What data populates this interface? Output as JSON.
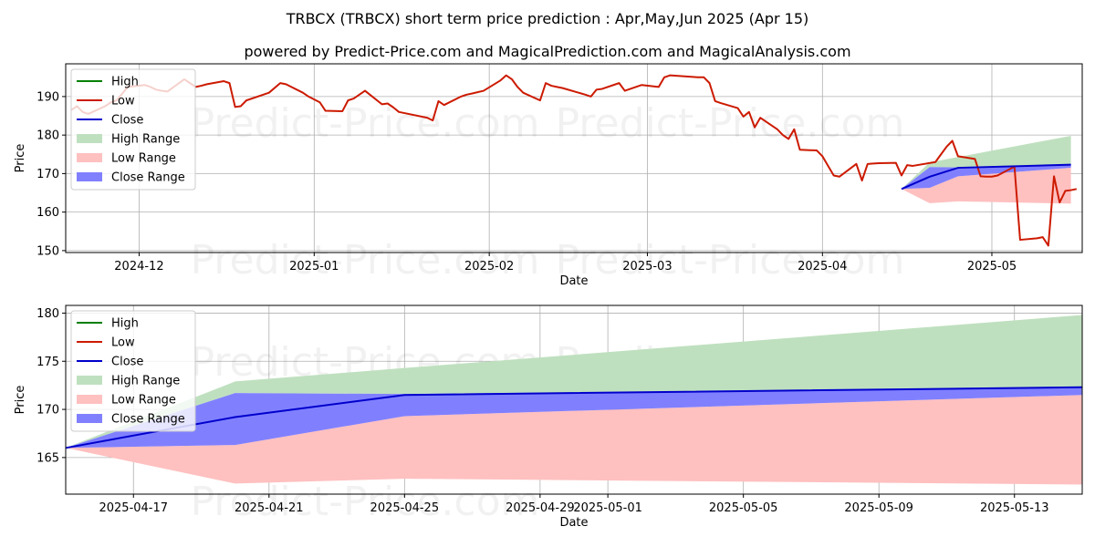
{
  "page": {
    "title": "TRBCX (TRBCX) short term price prediction : Apr,May,Jun 2025 (Apr 15)",
    "subtitle": "powered by Predict-Price.com and MagicalPrediction.com and MagicalAnalysis.com",
    "watermark": "Predict-Price.com"
  },
  "colors": {
    "high": "#008000",
    "low": "#cc1a00",
    "close": "#0000cc",
    "high_range": "#bfe0bf",
    "low_range": "#ffc0c0",
    "close_range": "#8080ff",
    "grid": "#b0b0b0"
  },
  "chart_data": [
    {
      "type": "line",
      "name": "history",
      "xlabel": "Date",
      "ylabel": "Price",
      "xlim": [
        "2024-11-18",
        "2025-05-17"
      ],
      "ylim": [
        149.5,
        198.5
      ],
      "yticks": [
        150,
        160,
        170,
        180,
        190
      ],
      "xticks": [
        {
          "date": "2024-12-01",
          "label": "2024-12"
        },
        {
          "date": "2025-01-01",
          "label": "2025-01"
        },
        {
          "date": "2025-02-01",
          "label": "2025-02"
        },
        {
          "date": "2025-03-01",
          "label": "2025-03"
        },
        {
          "date": "2025-04-01",
          "label": "2025-04"
        },
        {
          "date": "2025-05-01",
          "label": "2025-05"
        }
      ],
      "legend": [
        "High",
        "Low",
        "Close",
        "High Range",
        "Low Range",
        "Close Range"
      ],
      "legend_position": "upper-left",
      "low_series": [
        [
          "2024-11-19",
          186.5
        ],
        [
          "2024-11-20",
          187.5
        ],
        [
          "2024-11-21",
          186.0
        ],
        [
          "2024-11-22",
          185.5
        ],
        [
          "2024-11-25",
          187.5
        ],
        [
          "2024-11-26",
          188.5
        ],
        [
          "2024-11-27",
          189.0
        ],
        [
          "2024-11-29",
          192.5
        ],
        [
          "2024-12-02",
          193.0
        ],
        [
          "2024-12-03",
          192.5
        ],
        [
          "2024-12-04",
          191.8
        ],
        [
          "2024-12-05",
          191.5
        ],
        [
          "2024-12-06",
          191.3
        ],
        [
          "2024-12-09",
          194.5
        ],
        [
          "2024-12-10",
          193.5
        ],
        [
          "2024-12-11",
          192.5
        ],
        [
          "2024-12-12",
          192.8
        ],
        [
          "2024-12-13",
          193.2
        ],
        [
          "2024-12-16",
          194.0
        ],
        [
          "2024-12-17",
          193.5
        ],
        [
          "2024-12-18",
          187.3
        ],
        [
          "2024-12-19",
          187.5
        ],
        [
          "2024-12-20",
          189.0
        ],
        [
          "2024-12-23",
          190.5
        ],
        [
          "2024-12-24",
          191.0
        ],
        [
          "2024-12-26",
          193.5
        ],
        [
          "2024-12-27",
          193.2
        ],
        [
          "2024-12-30",
          191.0
        ],
        [
          "2024-12-31",
          190.0
        ],
        [
          "2025-01-02",
          188.5
        ],
        [
          "2025-01-03",
          186.3
        ],
        [
          "2025-01-06",
          186.2
        ],
        [
          "2025-01-07",
          189.0
        ],
        [
          "2025-01-08",
          189.5
        ],
        [
          "2025-01-10",
          191.5
        ],
        [
          "2025-01-13",
          188.0
        ],
        [
          "2025-01-14",
          188.2
        ],
        [
          "2025-01-15",
          187.2
        ],
        [
          "2025-01-16",
          186.0
        ],
        [
          "2025-01-17",
          185.7
        ],
        [
          "2025-01-21",
          184.5
        ],
        [
          "2025-01-22",
          183.8
        ],
        [
          "2025-01-23",
          188.8
        ],
        [
          "2025-01-24",
          187.8
        ],
        [
          "2025-01-27",
          190.0
        ],
        [
          "2025-01-28",
          190.5
        ],
        [
          "2025-01-29",
          190.8
        ],
        [
          "2025-01-31",
          191.5
        ],
        [
          "2025-02-03",
          194.2
        ],
        [
          "2025-02-04",
          195.5
        ],
        [
          "2025-02-05",
          194.5
        ],
        [
          "2025-02-06",
          192.5
        ],
        [
          "2025-02-07",
          191.0
        ],
        [
          "2025-02-10",
          189.0
        ],
        [
          "2025-02-11",
          193.5
        ],
        [
          "2025-02-12",
          192.8
        ],
        [
          "2025-02-13",
          192.5
        ],
        [
          "2025-02-14",
          192.2
        ],
        [
          "2025-02-18",
          190.5
        ],
        [
          "2025-02-19",
          190.0
        ],
        [
          "2025-02-20",
          191.8
        ],
        [
          "2025-02-21",
          192.0
        ],
        [
          "2025-02-24",
          193.5
        ],
        [
          "2025-02-25",
          191.5
        ],
        [
          "2025-02-26",
          192.0
        ],
        [
          "2025-02-27",
          192.5
        ],
        [
          "2025-02-28",
          193.0
        ],
        [
          "2025-03-03",
          192.5
        ],
        [
          "2025-03-04",
          195.0
        ],
        [
          "2025-03-05",
          195.5
        ],
        [
          "2025-03-10",
          195.0
        ],
        [
          "2025-03-11",
          195.0
        ],
        [
          "2025-03-12",
          193.5
        ],
        [
          "2025-03-13",
          188.8
        ],
        [
          "2025-03-14",
          188.3
        ],
        [
          "2025-03-17",
          187.0
        ],
        [
          "2025-03-18",
          184.8
        ],
        [
          "2025-03-19",
          186.0
        ],
        [
          "2025-03-20",
          182.0
        ],
        [
          "2025-03-21",
          184.5
        ],
        [
          "2025-03-24",
          181.5
        ],
        [
          "2025-03-25",
          180.0
        ],
        [
          "2025-03-26",
          179.0
        ],
        [
          "2025-03-27",
          181.5
        ],
        [
          "2025-03-28",
          176.2
        ],
        [
          "2025-03-31",
          176.0
        ],
        [
          "2025-04-01",
          174.5
        ],
        [
          "2025-04-02",
          172.0
        ],
        [
          "2025-04-03",
          169.5
        ],
        [
          "2025-04-04",
          169.2
        ],
        [
          "2025-04-07",
          172.5
        ],
        [
          "2025-04-08",
          168.2
        ],
        [
          "2025-04-09",
          172.5
        ],
        [
          "2025-04-10",
          172.6
        ],
        [
          "2025-04-11",
          172.7
        ],
        [
          "2025-04-14",
          172.8
        ],
        [
          "2025-04-15",
          169.5
        ],
        [
          "2025-04-16",
          172.2
        ],
        [
          "2025-04-17",
          172.0
        ],
        [
          "2025-04-21",
          173.0
        ],
        [
          "2025-04-22",
          175.0
        ],
        [
          "2025-04-23",
          177.0
        ],
        [
          "2025-04-24",
          178.5
        ],
        [
          "2025-04-25",
          174.5
        ],
        [
          "2025-04-28",
          173.8
        ],
        [
          "2025-04-29",
          169.3
        ],
        [
          "2025-04-30",
          169.2
        ],
        [
          "2025-05-01",
          169.2
        ],
        [
          "2025-05-02",
          169.5
        ],
        [
          "2025-05-05",
          171.8
        ],
        [
          "2025-05-06",
          152.8
        ],
        [
          "2025-05-09",
          153.2
        ],
        [
          "2025-05-10",
          153.5
        ],
        [
          "2025-05-11",
          151.3
        ],
        [
          "2025-05-12",
          169.3
        ],
        [
          "2025-05-13",
          162.5
        ],
        [
          "2025-05-14",
          165.5
        ],
        [
          "2025-05-15",
          165.7
        ],
        [
          "2025-05-16",
          166.0
        ]
      ],
      "low_series_note": "",
      "forecast": {
        "dates": [
          "2025-04-15",
          "2025-04-20",
          "2025-04-25",
          "2025-05-15"
        ],
        "close": [
          166.0,
          169.2,
          171.5,
          172.3
        ],
        "high": [
          166.0,
          172.9,
          174.3,
          179.8
        ],
        "high_low": [
          166.0,
          171.7,
          171.6,
          172.3
        ],
        "low": [
          166.0,
          162.3,
          162.8,
          162.2
        ],
        "low_high": [
          166.0,
          166.3,
          169.3,
          171.5
        ],
        "close_lo": [
          166.0,
          166.3,
          169.3,
          171.5
        ],
        "close_hi": [
          166.0,
          171.7,
          171.6,
          172.3
        ]
      }
    },
    {
      "type": "line",
      "name": "forecast",
      "xlabel": "Date",
      "ylabel": "Price",
      "xlim": [
        "2025-04-15",
        "2025-05-15"
      ],
      "ylim": [
        161.2,
        180.8
      ],
      "yticks": [
        165,
        170,
        175,
        180
      ],
      "xticks": [
        {
          "date": "2025-04-17",
          "label": "2025-04-17"
        },
        {
          "date": "2025-04-21",
          "label": "2025-04-21"
        },
        {
          "date": "2025-04-25",
          "label": "2025-04-25"
        },
        {
          "date": "2025-04-29",
          "label": "2025-04-29"
        },
        {
          "date": "2025-05-01",
          "label": "2025-05-01"
        },
        {
          "date": "2025-05-05",
          "label": "2025-05-05"
        },
        {
          "date": "2025-05-09",
          "label": "2025-05-09"
        },
        {
          "date": "2025-05-13",
          "label": "2025-05-13"
        }
      ],
      "legend": [
        "High",
        "Low",
        "Close",
        "High Range",
        "Low Range",
        "Close Range"
      ],
      "legend_position": "upper-left",
      "forecast": {
        "dates": [
          "2025-04-15",
          "2025-04-20",
          "2025-04-25",
          "2025-05-15"
        ],
        "close": [
          166.0,
          169.2,
          171.5,
          172.3
        ],
        "high": [
          166.0,
          172.9,
          174.3,
          179.8
        ],
        "high_low": [
          166.0,
          171.7,
          171.6,
          172.3
        ],
        "low": [
          166.0,
          162.3,
          162.8,
          162.2
        ],
        "low_high": [
          166.0,
          166.3,
          169.3,
          171.5
        ],
        "close_lo": [
          166.0,
          166.3,
          169.3,
          171.5
        ],
        "close_hi": [
          166.0,
          171.7,
          171.6,
          172.3
        ]
      }
    }
  ]
}
